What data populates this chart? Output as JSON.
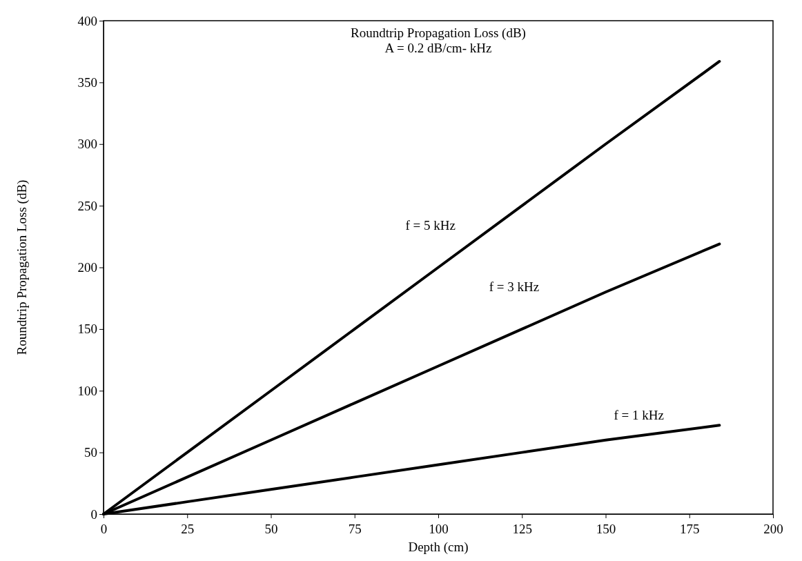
{
  "chart_data": {
    "type": "line",
    "title": "Roundtrip Propagation Loss (dB)",
    "subtitle": "A = 0.2 dB/cm- kHz",
    "xlabel": "Depth (cm)",
    "ylabel": "Roundtrip Propagation Loss (dB)",
    "x": [
      0,
      25,
      50,
      75,
      100,
      125,
      150,
      184
    ],
    "series": [
      {
        "name": "f = 5 kHz",
        "color": "#000000",
        "values": [
          0,
          50,
          100,
          150,
          200,
          250,
          300,
          367
        ]
      },
      {
        "name": "f = 3 kHz",
        "color": "#000000",
        "values": [
          0,
          30,
          60,
          90,
          120,
          150,
          180,
          219
        ]
      },
      {
        "name": "f = 1 kHz",
        "color": "#000000",
        "values": [
          0,
          10,
          20,
          30,
          40,
          50,
          60,
          72
        ]
      }
    ],
    "xlim": [
      0,
      200
    ],
    "xticks": [
      0,
      25,
      50,
      75,
      100,
      125,
      150,
      175,
      200
    ],
    "ylim": [
      0,
      400
    ],
    "yticks": [
      0,
      50,
      100,
      150,
      200,
      250,
      300,
      350,
      400
    ],
    "grid": false,
    "marker": "none",
    "line_style": "solid"
  }
}
